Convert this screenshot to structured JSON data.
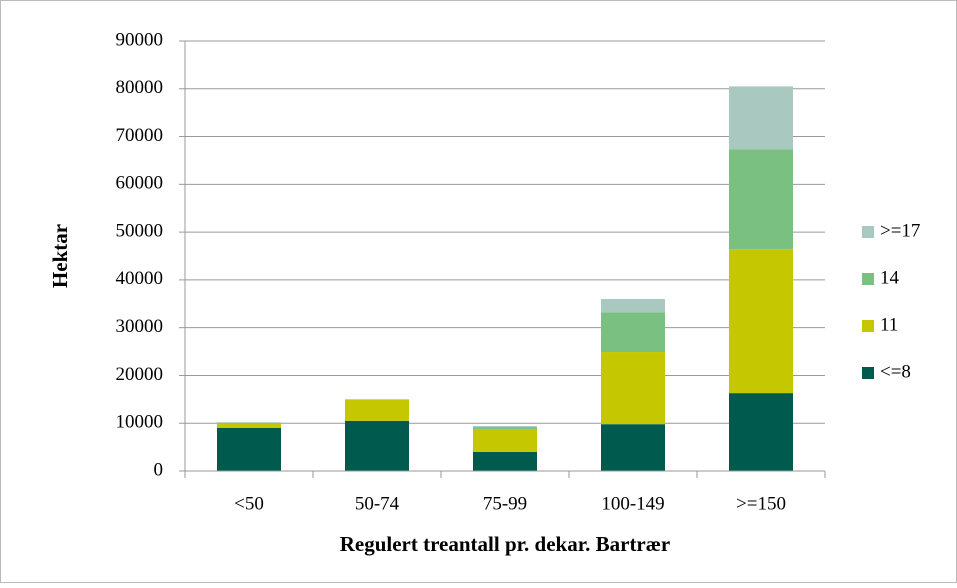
{
  "chart_data": {
    "type": "stacked_bar",
    "x_label": "Regulert treantall pr. dekar. Bartrær",
    "y_label": "Hektar",
    "categories": [
      "<50",
      "50-74",
      "75-99",
      "100-149",
      ">=150"
    ],
    "series": [
      {
        "name": "<=8",
        "color": "#005a4e",
        "values": [
          9000,
          10500,
          4000,
          9800,
          16300
        ]
      },
      {
        "name": "11",
        "color": "#c5c800",
        "values": [
          900,
          4500,
          4800,
          15100,
          30100
        ]
      },
      {
        "name": "14",
        "color": "#7ac081",
        "values": [
          200,
          0,
          400,
          8300,
          20900
        ]
      },
      {
        "name": ">=17",
        "color": "#a8c8c0",
        "values": [
          100,
          0,
          200,
          2800,
          13200
        ]
      }
    ],
    "ylim": [
      0,
      90000
    ],
    "yticks": [
      0,
      10000,
      20000,
      30000,
      40000,
      50000,
      60000,
      70000,
      80000,
      90000
    ],
    "grid": true,
    "legend": "right"
  }
}
